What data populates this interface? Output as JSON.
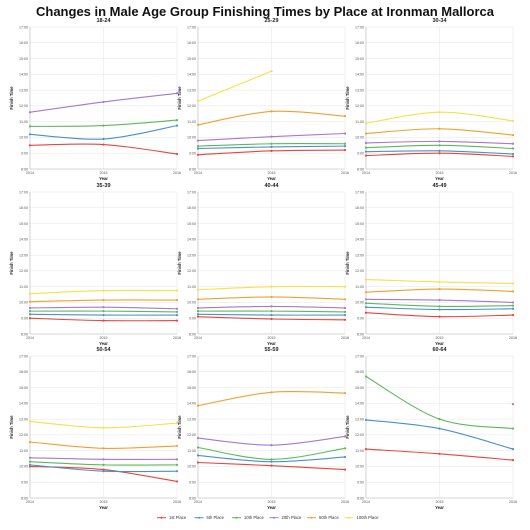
{
  "title": "Changes in Male Age Group Finishing Times by Place at Ironman Mallorca",
  "series_meta": [
    {
      "name": "1st Place",
      "color": "#e8453c"
    },
    {
      "name": "5th Place",
      "color": "#4a90c8"
    },
    {
      "name": "10th Place",
      "color": "#5cb85c"
    },
    {
      "name": "20th Place",
      "color": "#a779c9"
    },
    {
      "name": "50th Place",
      "color": "#f0a030"
    },
    {
      "name": "100th Place",
      "color": "#f5e04a"
    }
  ],
  "chart_data": [
    {
      "type": "line",
      "title": "18-24",
      "xlabel": "Year",
      "ylabel": "Finish Time",
      "x": [
        "2014",
        "2015",
        "2016"
      ],
      "ylim": [
        8,
        17
      ],
      "yticks": [
        "8:00",
        "9:00",
        "10:00",
        "11:00",
        "12:00",
        "13:00",
        "14:00",
        "15:00",
        "16:00",
        "17:00"
      ],
      "series": [
        {
          "name": "1st Place",
          "values": [
            9.5,
            9.55,
            8.95
          ]
        },
        {
          "name": "5th Place",
          "values": [
            10.2,
            9.9,
            10.75
          ]
        },
        {
          "name": "10th Place",
          "values": [
            10.7,
            10.75,
            11.1
          ]
        },
        {
          "name": "20th Place",
          "values": [
            11.6,
            12.25,
            12.8
          ]
        }
      ]
    },
    {
      "type": "line",
      "title": "25-29",
      "xlabel": "Year",
      "ylabel": "Finish Time",
      "x": [
        "2014",
        "2015",
        "2016"
      ],
      "ylim": [
        8,
        17
      ],
      "yticks": [
        "8:00",
        "9:00",
        "10:00",
        "11:00",
        "12:00",
        "13:00",
        "14:00",
        "15:00",
        "16:00",
        "17:00"
      ],
      "series": [
        {
          "name": "1st Place",
          "values": [
            8.9,
            9.15,
            9.2
          ]
        },
        {
          "name": "5th Place",
          "values": [
            9.3,
            9.4,
            9.45
          ]
        },
        {
          "name": "10th Place",
          "values": [
            9.45,
            9.6,
            9.6
          ]
        },
        {
          "name": "20th Place",
          "values": [
            9.8,
            10.05,
            10.25
          ]
        },
        {
          "name": "50th Place",
          "values": [
            10.8,
            11.65,
            11.35
          ]
        },
        {
          "name": "100th Place",
          "values": [
            12.3,
            14.2,
            null
          ]
        }
      ]
    },
    {
      "type": "line",
      "title": "30-34",
      "xlabel": "Year",
      "ylabel": "Finish Time",
      "x": [
        "2014",
        "2015",
        "2016"
      ],
      "ylim": [
        8,
        17
      ],
      "yticks": [
        "8:00",
        "9:00",
        "10:00",
        "11:00",
        "12:00",
        "13:00",
        "14:00",
        "15:00",
        "16:00",
        "17:00"
      ],
      "series": [
        {
          "name": "1st Place",
          "values": [
            8.85,
            9.0,
            8.8
          ]
        },
        {
          "name": "5th Place",
          "values": [
            9.1,
            9.15,
            8.95
          ]
        },
        {
          "name": "10th Place",
          "values": [
            9.35,
            9.5,
            9.3
          ]
        },
        {
          "name": "20th Place",
          "values": [
            9.65,
            9.75,
            9.6
          ]
        },
        {
          "name": "50th Place",
          "values": [
            10.25,
            10.55,
            10.15
          ]
        },
        {
          "name": "100th Place",
          "values": [
            10.9,
            11.6,
            11.05
          ]
        }
      ]
    },
    {
      "type": "line",
      "title": "35-39",
      "xlabel": "Year",
      "ylabel": "Finish Time",
      "x": [
        "2014",
        "2015",
        "2016"
      ],
      "ylim": [
        8,
        17
      ],
      "yticks": [
        "8:00",
        "9:00",
        "10:00",
        "11:00",
        "12:00",
        "13:00",
        "14:00",
        "15:00",
        "16:00",
        "17:00"
      ],
      "series": [
        {
          "name": "1st Place",
          "values": [
            9.0,
            8.85,
            8.85
          ]
        },
        {
          "name": "5th Place",
          "values": [
            9.25,
            9.2,
            9.2
          ]
        },
        {
          "name": "10th Place",
          "values": [
            9.45,
            9.45,
            9.4
          ]
        },
        {
          "name": "20th Place",
          "values": [
            9.65,
            9.7,
            9.6
          ]
        },
        {
          "name": "50th Place",
          "values": [
            10.05,
            10.15,
            10.15
          ]
        },
        {
          "name": "100th Place",
          "values": [
            10.55,
            10.75,
            10.75
          ]
        }
      ]
    },
    {
      "type": "line",
      "title": "40-44",
      "xlabel": "Year",
      "ylabel": "Finish Time",
      "x": [
        "2014",
        "2015",
        "2016"
      ],
      "ylim": [
        8,
        17
      ],
      "yticks": [
        "8:00",
        "9:00",
        "10:00",
        "11:00",
        "12:00",
        "13:00",
        "14:00",
        "15:00",
        "16:00",
        "17:00"
      ],
      "series": [
        {
          "name": "1st Place",
          "values": [
            9.1,
            8.95,
            8.9
          ]
        },
        {
          "name": "5th Place",
          "values": [
            9.25,
            9.2,
            9.2
          ]
        },
        {
          "name": "10th Place",
          "values": [
            9.45,
            9.45,
            9.4
          ]
        },
        {
          "name": "20th Place",
          "values": [
            9.65,
            9.75,
            9.65
          ]
        },
        {
          "name": "50th Place",
          "values": [
            10.2,
            10.35,
            10.2
          ]
        },
        {
          "name": "100th Place",
          "values": [
            10.8,
            11.0,
            11.0
          ]
        }
      ]
    },
    {
      "type": "line",
      "title": "45-49",
      "xlabel": "Year",
      "ylabel": "Finish Time",
      "x": [
        "2014",
        "2015",
        "2016"
      ],
      "ylim": [
        8,
        17
      ],
      "yticks": [
        "8:00",
        "9:00",
        "10:00",
        "11:00",
        "12:00",
        "13:00",
        "14:00",
        "15:00",
        "16:00",
        "17:00"
      ],
      "series": [
        {
          "name": "1st Place",
          "values": [
            9.35,
            9.1,
            9.2
          ]
        },
        {
          "name": "5th Place",
          "values": [
            9.7,
            9.55,
            9.6
          ]
        },
        {
          "name": "10th Place",
          "values": [
            9.95,
            9.75,
            9.8
          ]
        },
        {
          "name": "20th Place",
          "values": [
            10.2,
            10.15,
            10.0
          ]
        },
        {
          "name": "50th Place",
          "values": [
            10.65,
            10.85,
            10.7
          ]
        },
        {
          "name": "100th Place",
          "values": [
            11.45,
            11.3,
            11.2
          ]
        }
      ]
    },
    {
      "type": "line",
      "title": "50-54",
      "xlabel": "Year",
      "ylabel": "Finish Time",
      "x": [
        "2014",
        "2015",
        "2016"
      ],
      "ylim": [
        8,
        17
      ],
      "yticks": [
        "8:00",
        "9:00",
        "10:00",
        "11:00",
        "12:00",
        "13:00",
        "14:00",
        "15:00",
        "16:00",
        "17:00"
      ],
      "series": [
        {
          "name": "1st Place",
          "values": [
            10.0,
            9.8,
            9.05
          ]
        },
        {
          "name": "5th Place",
          "values": [
            10.1,
            9.7,
            9.7
          ]
        },
        {
          "name": "10th Place",
          "values": [
            10.3,
            10.1,
            10.1
          ]
        },
        {
          "name": "20th Place",
          "values": [
            10.55,
            10.45,
            10.45
          ]
        },
        {
          "name": "50th Place",
          "values": [
            11.55,
            11.15,
            11.3
          ]
        },
        {
          "name": "100th Place",
          "values": [
            12.85,
            12.45,
            12.75
          ]
        }
      ]
    },
    {
      "type": "line",
      "title": "55-59",
      "xlabel": "Year",
      "ylabel": "Finish Time",
      "x": [
        "2014",
        "2015",
        "2016"
      ],
      "ylim": [
        8,
        17
      ],
      "yticks": [
        "8:00",
        "9:00",
        "10:00",
        "11:00",
        "12:00",
        "13:00",
        "14:00",
        "15:00",
        "16:00",
        "17:00"
      ],
      "series": [
        {
          "name": "1st Place",
          "values": [
            10.25,
            10.05,
            9.8
          ]
        },
        {
          "name": "5th Place",
          "values": [
            10.7,
            10.3,
            10.6
          ]
        },
        {
          "name": "10th Place",
          "values": [
            11.2,
            10.45,
            11.15
          ]
        },
        {
          "name": "20th Place",
          "values": [
            11.8,
            11.35,
            11.9
          ]
        },
        {
          "name": "50th Place",
          "values": [
            13.85,
            14.7,
            14.65
          ]
        }
      ]
    },
    {
      "type": "line",
      "title": "60-64",
      "xlabel": "Year",
      "ylabel": "Finish Time",
      "x": [
        "2014",
        "2015",
        "2016"
      ],
      "ylim": [
        8,
        17
      ],
      "yticks": [
        "8:00",
        "9:00",
        "10:00",
        "11:00",
        "12:00",
        "13:00",
        "14:00",
        "15:00",
        "16:00",
        "17:00"
      ],
      "series": [
        {
          "name": "1st Place",
          "values": [
            11.1,
            10.8,
            10.4
          ]
        },
        {
          "name": "5th Place",
          "values": [
            12.95,
            12.4,
            11.1
          ]
        },
        {
          "name": "10th Place",
          "values": [
            15.7,
            13.0,
            12.4
          ]
        },
        {
          "name": "20th Place",
          "values": [
            null,
            null,
            13.95
          ]
        }
      ]
    }
  ]
}
